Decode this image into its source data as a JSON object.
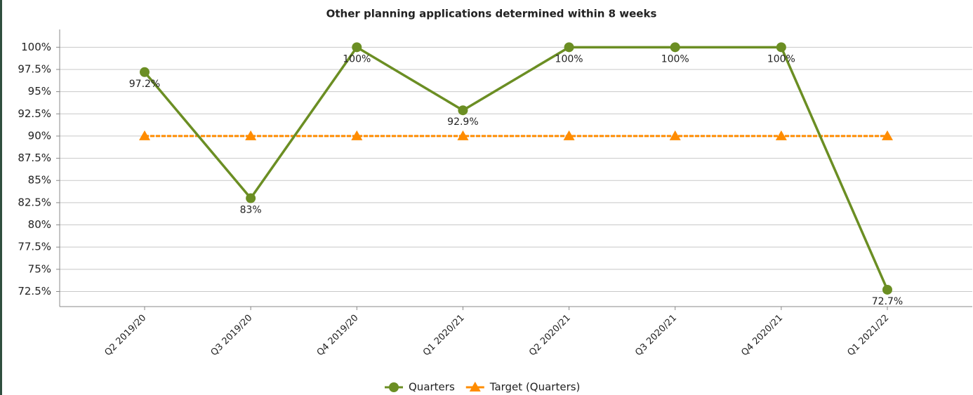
{
  "chart_data": {
    "type": "line",
    "title": "Other planning applications determined within 8 weeks",
    "categories": [
      "Q2 2019/20",
      "Q3 2019/20",
      "Q4 2019/20",
      "Q1 2020/21",
      "Q2 2020/21",
      "Q3 2020/21",
      "Q4 2020/21",
      "Q1 2021/22"
    ],
    "series": [
      {
        "name": "Quarters",
        "color": "#6b8e23",
        "marker": "circle",
        "values": [
          97.2,
          83,
          100,
          92.9,
          100,
          100,
          100,
          72.7
        ],
        "value_labels": [
          "97.2%",
          "83%",
          "100%",
          "92.9%",
          "100%",
          "100%",
          "100%",
          "72.7%"
        ]
      },
      {
        "name": "Target (Quarters)",
        "color": "#ff8c00",
        "marker": "triangle",
        "values": [
          90,
          90,
          90,
          90,
          90,
          90,
          90,
          90
        ]
      }
    ],
    "ylim": [
      70.8,
      102
    ],
    "yticks": [
      {
        "value": 72.5,
        "label": "72.5%"
      },
      {
        "value": 75,
        "label": "75%"
      },
      {
        "value": 77.5,
        "label": "77.5%"
      },
      {
        "value": 80,
        "label": "80%"
      },
      {
        "value": 82.5,
        "label": "82.5%"
      },
      {
        "value": 85,
        "label": "85%"
      },
      {
        "value": 87.5,
        "label": "87.5%"
      },
      {
        "value": 90,
        "label": "90%"
      },
      {
        "value": 92.5,
        "label": "92.5%"
      },
      {
        "value": 95,
        "label": "95%"
      },
      {
        "value": 97.5,
        "label": "97.5%"
      },
      {
        "value": 100,
        "label": "100%"
      }
    ],
    "grid": true,
    "legend": "bottom"
  }
}
